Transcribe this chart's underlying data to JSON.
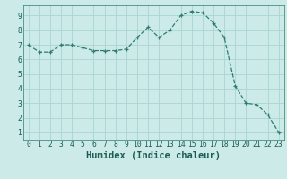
{
  "x": [
    0,
    1,
    2,
    3,
    4,
    5,
    6,
    7,
    8,
    9,
    10,
    11,
    12,
    13,
    14,
    15,
    16,
    17,
    18,
    19,
    20,
    21,
    22,
    23
  ],
  "y": [
    7.0,
    6.5,
    6.5,
    7.0,
    7.0,
    6.8,
    6.6,
    6.6,
    6.6,
    6.7,
    7.5,
    8.2,
    7.5,
    8.0,
    9.0,
    9.3,
    9.2,
    8.5,
    7.5,
    4.2,
    3.0,
    2.9,
    2.2,
    1.0
  ],
  "xlabel": "Humidex (Indice chaleur)",
  "xlim": [
    -0.5,
    23.5
  ],
  "ylim": [
    0.5,
    9.7
  ],
  "yticks": [
    1,
    2,
    3,
    4,
    5,
    6,
    7,
    8,
    9
  ],
  "xticks": [
    0,
    1,
    2,
    3,
    4,
    5,
    6,
    7,
    8,
    9,
    10,
    11,
    12,
    13,
    14,
    15,
    16,
    17,
    18,
    19,
    20,
    21,
    22,
    23
  ],
  "bg_color": "#cceae7",
  "grid_color": "#aad4d0",
  "line_color": "#2e7d6e",
  "marker_color": "#2e7d6e",
  "tick_label_fontsize": 5.8,
  "xlabel_fontsize": 7.5
}
